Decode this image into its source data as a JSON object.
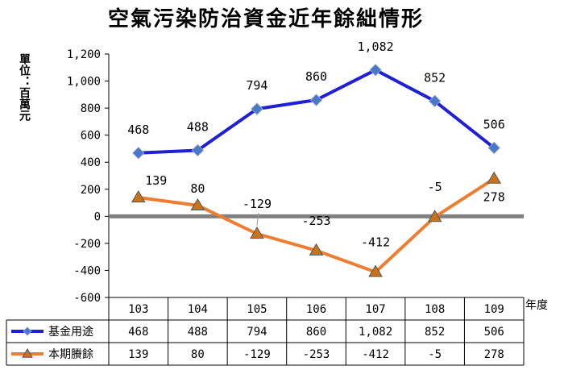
{
  "colors": {
    "series1": "#1f1fd6",
    "series1_marker": "#4a78c8",
    "series2": "#ed7d31",
    "series2_marker": "#c8741d",
    "zero_line": "#808080",
    "grid": "#d9d9d9"
  },
  "chart_data": {
    "type": "line",
    "title": "空氣污染防治資金近年餘絀情形",
    "ylabel": "單位：百萬元",
    "xlabel": "年度",
    "categories": [
      "103",
      "104",
      "105",
      "106",
      "107",
      "108",
      "109"
    ],
    "ylim": [
      -600,
      1200
    ],
    "yticks": [
      -600,
      -400,
      -200,
      0,
      200,
      400,
      600,
      800,
      1000,
      1200
    ],
    "ytick_labels": [
      "-600",
      "-400",
      "-200",
      "0",
      "200",
      "400",
      "600",
      "800",
      "1,000",
      "1,200"
    ],
    "grid": false,
    "series": [
      {
        "name": "基金用途",
        "marker": "diamond",
        "values": [
          468,
          488,
          794,
          860,
          1082,
          852,
          506
        ],
        "labels": [
          "468",
          "488",
          "794",
          "860",
          "1,082",
          "852",
          "506"
        ]
      },
      {
        "name": "本期賸餘",
        "marker": "triangle",
        "values": [
          139,
          80,
          -129,
          -253,
          -412,
          -5,
          278
        ],
        "labels": [
          "139",
          "80",
          "-129",
          "-253",
          "-412",
          "-5",
          "278"
        ]
      }
    ]
  }
}
